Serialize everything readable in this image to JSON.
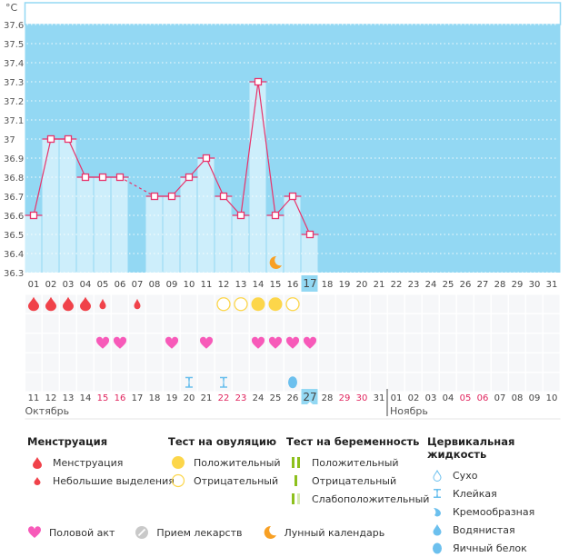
{
  "chart_data": {
    "type": "bar",
    "unit_label": "°C",
    "ylim": [
      36.3,
      37.6
    ],
    "yticks": [
      "36.3",
      "36.4",
      "36.5",
      "36.6",
      "36.7",
      "36.8",
      "36.9",
      "37",
      "37.1",
      "37.2",
      "37.3",
      "37.4",
      "37.5",
      "37.6"
    ],
    "days": [
      "01",
      "02",
      "03",
      "04",
      "05",
      "06",
      "07",
      "08",
      "09",
      "10",
      "11",
      "12",
      "13",
      "14",
      "15",
      "16",
      "17",
      "18",
      "19",
      "20",
      "21",
      "22",
      "23",
      "24",
      "25",
      "26",
      "27",
      "28",
      "29",
      "30",
      "31"
    ],
    "current_day": "17",
    "temperatures": [
      36.6,
      37.0,
      37.0,
      36.8,
      36.8,
      36.8,
      null,
      36.7,
      36.7,
      36.8,
      36.9,
      36.7,
      36.6,
      37.3,
      36.6,
      36.7,
      36.5,
      null,
      null,
      null,
      null,
      null,
      null,
      null,
      null,
      null,
      null,
      null,
      null,
      null,
      null
    ],
    "moon_day": "15",
    "menstruation": {
      "01": "heavy",
      "02": "heavy",
      "03": "heavy",
      "04": "heavy",
      "05": "light",
      "07": "light"
    },
    "ovulation_test": {
      "12": "negative",
      "13": "negative",
      "14": "positive",
      "15": "positive",
      "16": "negative"
    },
    "intercourse": [
      "05",
      "06",
      "09",
      "11",
      "14",
      "15",
      "16",
      "17"
    ],
    "cervical_fluid": {
      "10": "sticky",
      "12": "sticky",
      "16": "egg-white"
    },
    "calendar_dates": [
      {
        "d": "11",
        "w": false
      },
      {
        "d": "12",
        "w": false
      },
      {
        "d": "13",
        "w": false
      },
      {
        "d": "14",
        "w": false
      },
      {
        "d": "15",
        "w": true
      },
      {
        "d": "16",
        "w": true
      },
      {
        "d": "17",
        "w": false
      },
      {
        "d": "18",
        "w": false
      },
      {
        "d": "19",
        "w": false
      },
      {
        "d": "20",
        "w": false
      },
      {
        "d": "21",
        "w": false
      },
      {
        "d": "22",
        "w": true
      },
      {
        "d": "23",
        "w": true
      },
      {
        "d": "24",
        "w": false
      },
      {
        "d": "25",
        "w": false
      },
      {
        "d": "26",
        "w": false
      },
      {
        "d": "27",
        "w": false,
        "today": true
      },
      {
        "d": "28",
        "w": false
      },
      {
        "d": "29",
        "w": true
      },
      {
        "d": "30",
        "w": true
      },
      {
        "d": "31",
        "w": false
      },
      {
        "d": "01",
        "w": false
      },
      {
        "d": "02",
        "w": false
      },
      {
        "d": "03",
        "w": false
      },
      {
        "d": "04",
        "w": false
      },
      {
        "d": "05",
        "w": true
      },
      {
        "d": "06",
        "w": true
      },
      {
        "d": "07",
        "w": false
      },
      {
        "d": "08",
        "w": false
      },
      {
        "d": "09",
        "w": false
      },
      {
        "d": "10",
        "w": false
      }
    ],
    "months": [
      "Октябрь",
      "Ноябрь"
    ],
    "colors": {
      "plot_bg": "#93d8f3",
      "bar": "#cdeefb",
      "line": "#e8336b",
      "weekend": "#e0245e",
      "today_bg": "#93d8f3"
    }
  },
  "legend": {
    "menstruation": {
      "title": "Менструация",
      "items": [
        "Менструация",
        "Небольшие выделения"
      ]
    },
    "ovulation": {
      "title": "Тест на овуляцию",
      "items": [
        "Положительный",
        "Отрицательный"
      ]
    },
    "pregnancy": {
      "title": "Тест на беременность",
      "items": [
        "Положительный",
        "Отрицательный",
        "Слабоположительный"
      ]
    },
    "cervical": {
      "title": "Цервикальная жидкость",
      "items": [
        "Сухо",
        "Клейкая",
        "Кремообразная",
        "Водянистая",
        "Яичный белок"
      ]
    },
    "bottom": [
      "Половой акт",
      "Прием лекарств",
      "Лунный календарь"
    ]
  }
}
